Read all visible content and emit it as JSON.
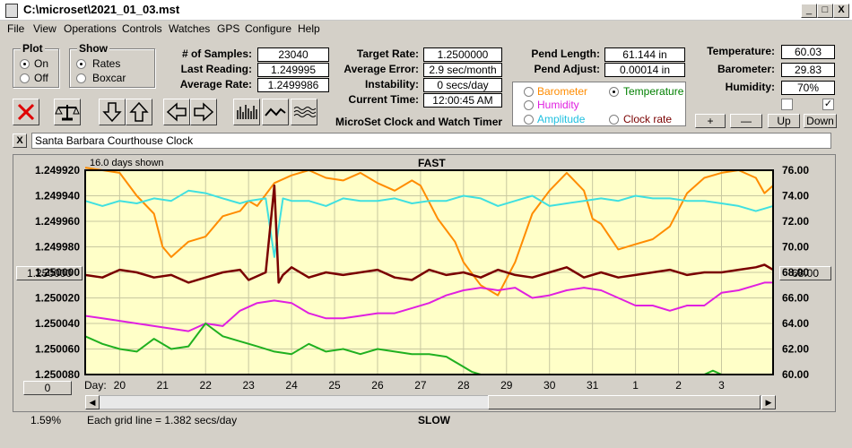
{
  "window": {
    "title": "C:\\microset\\2021_01_03.mst",
    "min": "_",
    "max": "□",
    "close": "X"
  },
  "menu": [
    "File",
    "View",
    "Operations",
    "Controls",
    "Watches",
    "GPS",
    "Configure",
    "Help"
  ],
  "plot": {
    "label": "Plot",
    "on": "On",
    "off": "Off",
    "selected": "On"
  },
  "show": {
    "label": "Show",
    "rates": "Rates",
    "boxcar": "Boxcar",
    "selected": "Rates"
  },
  "stats": {
    "samples_label": "# of Samples:",
    "samples": "23040",
    "last_label": "Last Reading:",
    "last": "1.249995",
    "avg_label": "Average Rate:",
    "avg": "1.2499986"
  },
  "rates": {
    "target_label": "Target Rate:",
    "target": "1.2500000",
    "err_label": "Average Error:",
    "err": "2.9 sec/month",
    "inst_label": "Instability:",
    "inst": "0 secs/day",
    "time_label": "Current Time:",
    "time": "12:00:45 AM"
  },
  "pend": {
    "len_label": "Pend Length:",
    "len": "61.144 in",
    "adj_label": "Pend Adjust:",
    "adj": "0.00014 in"
  },
  "env": {
    "temp_label": "Temperature:",
    "temp": "60.03",
    "baro_label": "Barometer:",
    "baro": "29.83",
    "hum_label": "Humidity:",
    "hum": "70%"
  },
  "sensor_options": {
    "barometer": "Barometer",
    "temperature": "Temperature",
    "humidity": "Humidity",
    "amplitude": "Amplitude",
    "clock_rate": "Clock rate",
    "selected": "Temperature"
  },
  "app_title": "MicroSet Clock and Watch Timer",
  "adjust_buttons": {
    "plus": "+",
    "minus": "—",
    "up": "Up",
    "down": "Down"
  },
  "clock_name": "Santa Barbara Courthouse Clock",
  "clear_label": "X",
  "checks": {
    "one": false,
    "two": true,
    "two_mark": "✓"
  },
  "chart": {
    "top_label": "FAST",
    "bottom_label": "SLOW",
    "days_shown": "16.0 days shown",
    "grid_note": "Each grid line = 1.382 secs/day",
    "percent": "1.59%",
    "mid_left_button": "1.250000",
    "mid_right_button": "68.00",
    "zero_button": "0",
    "day_label": "Day:"
  },
  "chart_data": {
    "type": "line",
    "left_ticks": [
      "1.249920",
      "1.249940",
      "1.249960",
      "1.249980",
      "1.250000",
      "1.250020",
      "1.250040",
      "1.250060",
      "1.250080"
    ],
    "right_ticks": [
      "76.00",
      "74.00",
      "72.00",
      "70.00",
      "68.00",
      "66.00",
      "64.00",
      "62.00",
      "60.00"
    ],
    "day_ticks": [
      "20",
      "21",
      "22",
      "23",
      "24",
      "25",
      "26",
      "27",
      "28",
      "29",
      "30",
      "31",
      "1",
      "2",
      "3"
    ],
    "ylim_left": [
      1.24992,
      1.25008
    ],
    "ylim_right": [
      60,
      76
    ],
    "x_day_range": [
      19.2,
      35.2
    ],
    "series": [
      {
        "key": "temperature",
        "color": "#ff8c00",
        "x": [
          19.2,
          19.6,
          20.0,
          20.4,
          20.8,
          21.0,
          21.2,
          21.6,
          22.0,
          22.4,
          22.8,
          23.0,
          23.2,
          23.6,
          24.0,
          24.4,
          24.8,
          25.2,
          25.6,
          26.0,
          26.4,
          26.8,
          27.0,
          27.4,
          27.8,
          28.0,
          28.4,
          28.8,
          29.2,
          29.6,
          30.0,
          30.4,
          30.8,
          31.0,
          31.2,
          31.6,
          32.0,
          32.4,
          32.8,
          33.2,
          33.6,
          34.0,
          34.4,
          34.8,
          35.0,
          35.2
        ],
        "y": [
          76.2,
          76.0,
          75.8,
          74.0,
          72.6,
          70.0,
          69.2,
          70.4,
          70.8,
          72.4,
          72.8,
          73.6,
          73.2,
          75.0,
          75.6,
          76.0,
          75.4,
          75.2,
          75.8,
          75.0,
          74.4,
          75.2,
          74.8,
          72.2,
          70.4,
          68.8,
          67.0,
          66.2,
          68.8,
          72.6,
          74.4,
          75.8,
          74.4,
          72.2,
          71.8,
          69.8,
          70.2,
          70.6,
          71.6,
          74.2,
          75.4,
          75.8,
          76.0,
          75.4,
          74.2,
          74.8
        ]
      },
      {
        "key": "humidity",
        "color": "#40e0e0",
        "x": [
          19.2,
          19.6,
          20.0,
          20.4,
          20.8,
          21.2,
          21.6,
          22.0,
          22.4,
          22.8,
          23.0,
          23.4,
          23.6,
          23.8,
          24.0,
          24.4,
          24.8,
          25.2,
          25.6,
          26.0,
          26.4,
          26.8,
          27.2,
          27.6,
          28.0,
          28.4,
          28.8,
          29.2,
          29.6,
          30.0,
          30.4,
          30.8,
          31.2,
          31.6,
          32.0,
          32.4,
          32.8,
          33.2,
          33.6,
          34.0,
          34.4,
          34.8,
          35.0,
          35.2
        ],
        "y": [
          73.6,
          73.2,
          73.6,
          73.4,
          73.8,
          73.6,
          74.4,
          74.2,
          73.8,
          73.4,
          73.6,
          73.8,
          69.2,
          73.8,
          73.6,
          73.6,
          73.2,
          73.8,
          73.6,
          73.6,
          73.8,
          73.4,
          73.6,
          73.6,
          74.0,
          73.8,
          73.2,
          73.6,
          74.0,
          73.2,
          73.4,
          73.6,
          73.8,
          73.6,
          74.0,
          73.8,
          73.8,
          73.6,
          73.6,
          73.4,
          73.2,
          72.8,
          73.0,
          73.2
        ]
      },
      {
        "key": "clock_rate",
        "color": "#7a0000",
        "x": [
          19.2,
          19.6,
          20.0,
          20.4,
          20.8,
          21.2,
          21.6,
          22.0,
          22.4,
          22.8,
          23.0,
          23.4,
          23.6,
          23.7,
          23.8,
          24.0,
          24.4,
          24.8,
          25.2,
          25.6,
          26.0,
          26.4,
          26.8,
          27.2,
          27.6,
          28.0,
          28.4,
          28.8,
          29.2,
          29.6,
          30.0,
          30.4,
          30.8,
          31.2,
          31.6,
          32.0,
          32.4,
          32.8,
          33.2,
          33.6,
          34.0,
          34.4,
          34.8,
          35.0,
          35.2
        ],
        "y": [
          67.8,
          67.6,
          68.2,
          68.0,
          67.6,
          67.8,
          67.2,
          67.6,
          68.0,
          68.2,
          67.4,
          68.0,
          74.8,
          67.2,
          67.8,
          68.4,
          67.6,
          68.0,
          67.8,
          68.0,
          68.2,
          67.6,
          67.4,
          68.2,
          67.8,
          68.0,
          67.6,
          68.2,
          67.8,
          67.6,
          68.0,
          68.4,
          67.6,
          68.0,
          67.6,
          67.8,
          68.0,
          68.2,
          67.8,
          68.0,
          68.0,
          68.2,
          68.4,
          68.6,
          68.2
        ]
      },
      {
        "key": "barometer",
        "color": "#e020e0",
        "x": [
          19.2,
          19.6,
          20.0,
          20.4,
          20.8,
          21.2,
          21.6,
          22.0,
          22.4,
          22.8,
          23.2,
          23.6,
          24.0,
          24.4,
          24.8,
          25.2,
          25.6,
          26.0,
          26.4,
          26.8,
          27.2,
          27.6,
          28.0,
          28.4,
          28.8,
          29.2,
          29.6,
          30.0,
          30.4,
          30.8,
          31.2,
          31.6,
          32.0,
          32.4,
          32.8,
          33.2,
          33.6,
          34.0,
          34.4,
          34.8,
          35.0,
          35.2
        ],
        "y": [
          64.6,
          64.4,
          64.2,
          64.0,
          63.8,
          63.6,
          63.4,
          64.0,
          63.8,
          65.0,
          65.6,
          65.8,
          65.6,
          64.8,
          64.4,
          64.4,
          64.6,
          64.8,
          64.8,
          65.2,
          65.6,
          66.2,
          66.6,
          66.8,
          66.6,
          66.8,
          66.0,
          66.2,
          66.6,
          66.8,
          66.6,
          66.0,
          65.4,
          65.4,
          65.0,
          65.4,
          65.4,
          66.4,
          66.6,
          67.0,
          67.2,
          67.2
        ]
      },
      {
        "key": "amplitude",
        "color": "#20b020",
        "x": [
          19.2,
          19.6,
          20.0,
          20.4,
          20.8,
          21.2,
          21.6,
          22.0,
          22.4,
          22.8,
          23.2,
          23.6,
          24.0,
          24.4,
          24.8,
          25.2,
          25.6,
          26.0,
          26.4,
          26.8,
          27.2,
          27.6,
          28.0,
          28.2,
          28.4,
          29.0,
          30.0,
          31.0,
          32.0,
          33.0,
          33.6,
          33.8,
          34.0,
          35.2
        ],
        "y": [
          63.0,
          62.4,
          62.0,
          61.8,
          62.8,
          62.0,
          62.2,
          64.0,
          63.0,
          62.6,
          62.2,
          61.8,
          61.6,
          62.4,
          61.8,
          62.0,
          61.6,
          62.0,
          61.8,
          61.6,
          61.6,
          61.4,
          60.6,
          60.2,
          60.0,
          60.0,
          60.0,
          60.0,
          60.0,
          60.0,
          60.0,
          60.3,
          60.0,
          60.0
        ]
      }
    ]
  }
}
